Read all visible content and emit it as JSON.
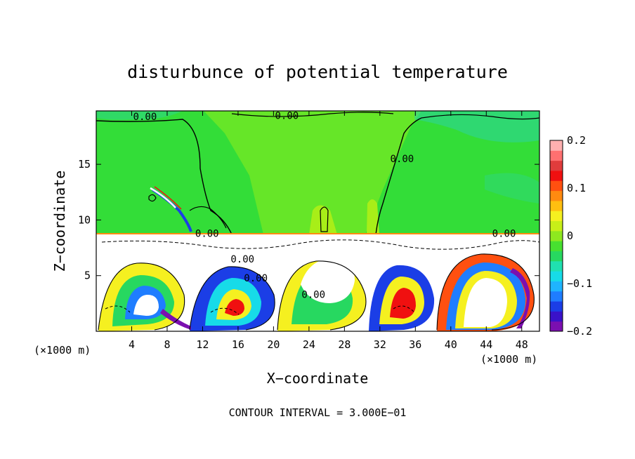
{
  "chart_data": {
    "type": "heatmap",
    "title": "disturbunce of potential temperature",
    "xlabel": "X−coordinate",
    "ylabel": "Z−coordinate",
    "x_unit": "(×1000 m)",
    "z_unit": "(×1000 m)",
    "footer": "CONTOUR INTERVAL = 3.000E−01",
    "xlim": [
      0,
      50
    ],
    "ylim": [
      0,
      19.8
    ],
    "x_ticks": [
      4,
      8,
      12,
      16,
      20,
      24,
      28,
      32,
      36,
      40,
      44,
      48
    ],
    "y_ticks": [
      5,
      10,
      15
    ],
    "colorbar": {
      "range": [
        -0.2,
        0.2
      ],
      "tick_values": [
        0.2,
        0.1,
        0,
        -0.1,
        -0.2
      ],
      "tick_labels": [
        "0.2",
        "0.1",
        "0",
        "−0.1",
        "−0.2"
      ],
      "colors": [
        "#7b0fb0",
        "#3a12c9",
        "#1b3ee6",
        "#1f7dff",
        "#1fb4ff",
        "#17dbe8",
        "#20e0b0",
        "#27d860",
        "#47e030",
        "#8ee81f",
        "#c8ef18",
        "#f5f020",
        "#ffbf10",
        "#ff8a10",
        "#ff5010",
        "#f01010",
        "#e03c3c",
        "#ff7070",
        "#ffb0b0"
      ]
    },
    "contour_labels": [
      {
        "text": "0.00",
        "x": 5.5,
        "z": 19.3
      },
      {
        "text": "0.00",
        "x": 21.5,
        "z": 19.4
      },
      {
        "text": "0.00",
        "x": 34.5,
        "z": 15.5
      },
      {
        "text": "0.00",
        "x": 12.5,
        "z": 8.8
      },
      {
        "text": "0.00",
        "x": 46.0,
        "z": 8.8
      },
      {
        "text": "0.00",
        "x": 16.5,
        "z": 6.5
      },
      {
        "text": "0.00",
        "x": 18.0,
        "z": 4.8
      },
      {
        "text": "0.00",
        "x": 24.5,
        "z": 3.3
      }
    ]
  }
}
